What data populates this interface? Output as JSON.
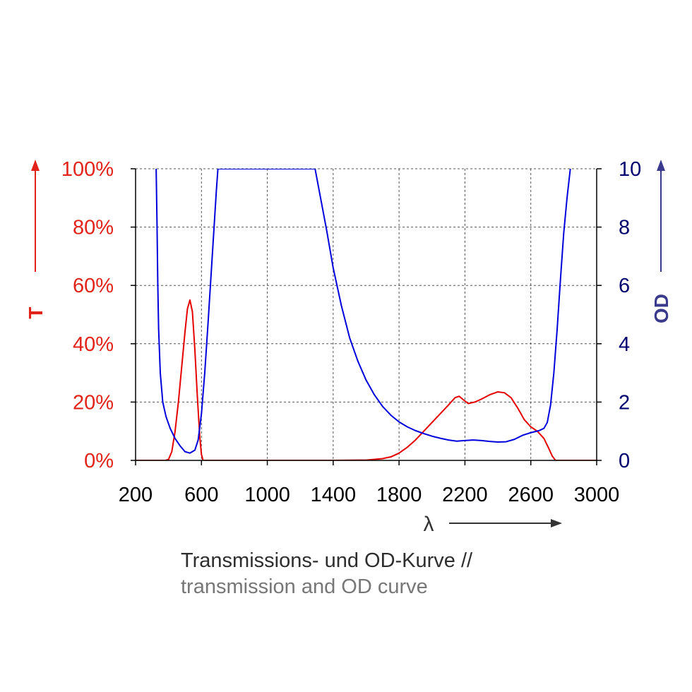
{
  "caption": {
    "line1": "Transmissions- und OD-Kurve //",
    "line2": "transmission and OD curve"
  },
  "chart_data": {
    "type": "line",
    "xlabel": "λ",
    "xlim": [
      200,
      3000
    ],
    "x_ticks": [
      200,
      600,
      1000,
      1400,
      1800,
      2200,
      2600,
      3000
    ],
    "x_tick_labels": [
      "200",
      "600",
      "1000",
      "1400",
      "1800",
      "2200",
      "2600",
      "3000"
    ],
    "grid": true,
    "y_left": {
      "label": "T",
      "lim": [
        0,
        100
      ],
      "ticks": [
        0,
        20,
        40,
        60,
        80,
        100
      ],
      "tick_labels": [
        "0%",
        "20%",
        "40%",
        "60%",
        "80%",
        "100%"
      ],
      "color": "#e2231a"
    },
    "y_right": {
      "label": "OD",
      "lim": [
        0,
        10
      ],
      "ticks": [
        0,
        2,
        4,
        6,
        8,
        10
      ],
      "tick_labels": [
        "0",
        "2",
        "4",
        "6",
        "8",
        "10"
      ],
      "color": "#00006e"
    },
    "series": [
      {
        "axis": "left",
        "color": "#e60000",
        "points": [
          [
            200,
            0
          ],
          [
            380,
            0
          ],
          [
            400,
            0.3
          ],
          [
            420,
            3
          ],
          [
            440,
            10
          ],
          [
            460,
            20
          ],
          [
            480,
            32
          ],
          [
            500,
            44
          ],
          [
            515,
            52
          ],
          [
            530,
            55
          ],
          [
            545,
            51
          ],
          [
            560,
            38
          ],
          [
            575,
            22
          ],
          [
            590,
            8
          ],
          [
            600,
            2
          ],
          [
            610,
            0
          ],
          [
            700,
            0
          ],
          [
            1000,
            0
          ],
          [
            1400,
            0
          ],
          [
            1600,
            0.1
          ],
          [
            1700,
            0.6
          ],
          [
            1750,
            1.2
          ],
          [
            1800,
            2.5
          ],
          [
            1850,
            4.5
          ],
          [
            1900,
            7
          ],
          [
            1950,
            10
          ],
          [
            2000,
            13
          ],
          [
            2050,
            16
          ],
          [
            2100,
            19
          ],
          [
            2140,
            21.5
          ],
          [
            2165,
            22
          ],
          [
            2190,
            20.8
          ],
          [
            2220,
            19.5
          ],
          [
            2260,
            20
          ],
          [
            2300,
            21
          ],
          [
            2350,
            22.5
          ],
          [
            2400,
            23.5
          ],
          [
            2440,
            23.2
          ],
          [
            2480,
            21.5
          ],
          [
            2520,
            18
          ],
          [
            2560,
            14
          ],
          [
            2600,
            11.5
          ],
          [
            2640,
            10
          ],
          [
            2680,
            7.5
          ],
          [
            2710,
            4
          ],
          [
            2730,
            1.5
          ],
          [
            2750,
            0
          ],
          [
            3000,
            0
          ]
        ]
      },
      {
        "axis": "right",
        "color": "#0000dd",
        "points": [
          [
            325,
            10
          ],
          [
            330,
            8.2
          ],
          [
            335,
            6
          ],
          [
            340,
            4.5
          ],
          [
            350,
            3
          ],
          [
            365,
            2
          ],
          [
            385,
            1.5
          ],
          [
            410,
            1.1
          ],
          [
            440,
            0.75
          ],
          [
            470,
            0.5
          ],
          [
            500,
            0.3
          ],
          [
            530,
            0.25
          ],
          [
            560,
            0.35
          ],
          [
            580,
            0.7
          ],
          [
            600,
            1.6
          ],
          [
            620,
            3
          ],
          [
            640,
            4.7
          ],
          [
            660,
            6.5
          ],
          [
            680,
            8.3
          ],
          [
            690,
            9.2
          ],
          [
            700,
            10
          ],
          [
            1290,
            10
          ],
          [
            1320,
            9.1
          ],
          [
            1360,
            7.9
          ],
          [
            1400,
            6.6
          ],
          [
            1450,
            5.3
          ],
          [
            1500,
            4.2
          ],
          [
            1550,
            3.4
          ],
          [
            1600,
            2.75
          ],
          [
            1650,
            2.25
          ],
          [
            1700,
            1.85
          ],
          [
            1750,
            1.55
          ],
          [
            1800,
            1.32
          ],
          [
            1850,
            1.15
          ],
          [
            1900,
            1.02
          ],
          [
            1950,
            0.92
          ],
          [
            2000,
            0.83
          ],
          [
            2050,
            0.76
          ],
          [
            2100,
            0.7
          ],
          [
            2150,
            0.66
          ],
          [
            2200,
            0.68
          ],
          [
            2250,
            0.7
          ],
          [
            2300,
            0.68
          ],
          [
            2350,
            0.65
          ],
          [
            2400,
            0.63
          ],
          [
            2450,
            0.64
          ],
          [
            2500,
            0.72
          ],
          [
            2550,
            0.86
          ],
          [
            2600,
            0.95
          ],
          [
            2650,
            1.02
          ],
          [
            2680,
            1.1
          ],
          [
            2700,
            1.3
          ],
          [
            2720,
            1.9
          ],
          [
            2740,
            3
          ],
          [
            2760,
            4.5
          ],
          [
            2780,
            6.2
          ],
          [
            2800,
            7.8
          ],
          [
            2820,
            9
          ],
          [
            2840,
            10
          ]
        ]
      }
    ]
  }
}
